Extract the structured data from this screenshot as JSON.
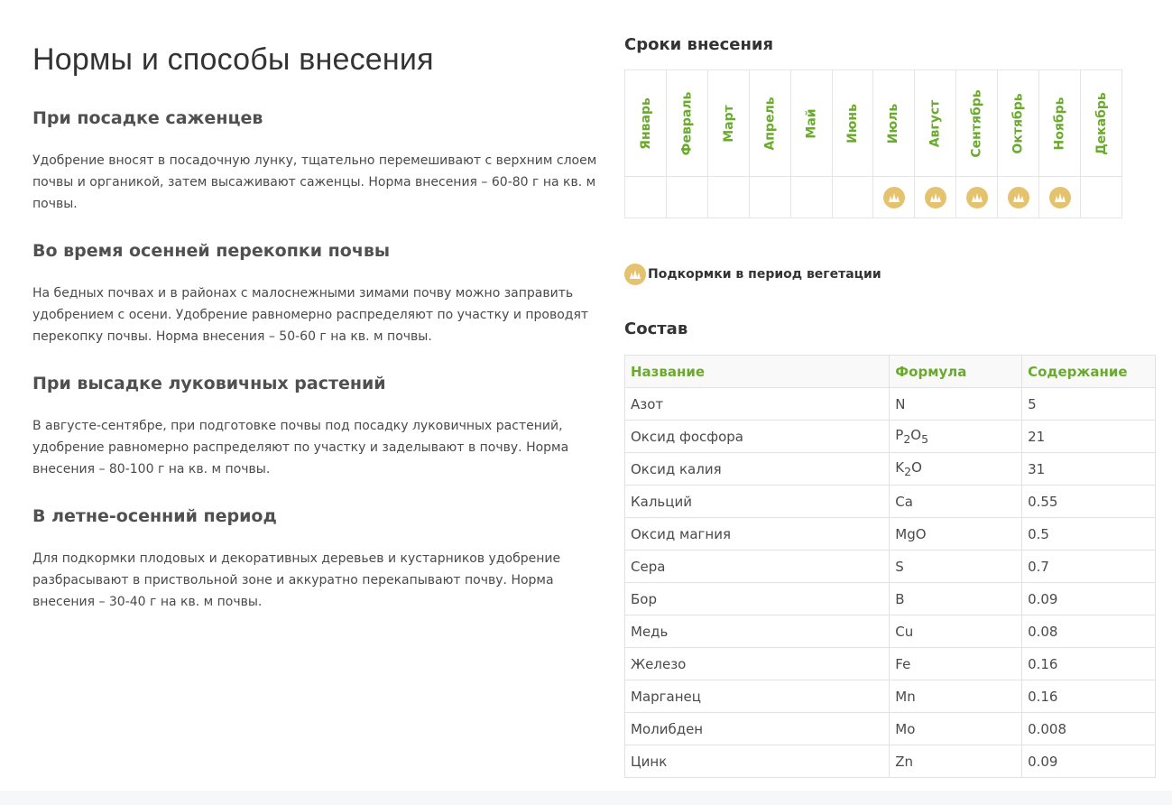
{
  "page_title": "Нормы и способы внесения",
  "sections": [
    {
      "title": "При посадке саженцев",
      "text": "Удобрение вносят в посадочную лунку, тщательно перемешивают с верхним слоем почвы и органикой, затем высаживают саженцы. Норма внесения – 60-80 г на кв. м почвы."
    },
    {
      "title": "Во время осенней перекопки почвы",
      "text": "На бедных почвах и в районах с малоснежными зимами почву можно заправить удобрением с осени. Удобрение равномерно распределяют по участку и проводят перекопку почвы. Норма внесения – 50-60 г на кв. м почвы."
    },
    {
      "title": "При высадке луковичных растений",
      "text": "В августе-сентябре, при подготовке почвы под посадку луковичных растений, удобрение равномерно распределяют по участку и заделывают в почву. Норма внесения – 80-100 г на кв. м почвы."
    },
    {
      "title": "В летне-осенний период",
      "text": "Для подкормки плодовых и декоративных деревьев и кустарников удобрение разбрасывают в приствольной зоне и аккуратно перекапывают почву. Норма внесения – 30-40 г на кв. м почвы."
    }
  ],
  "schedule": {
    "title": "Сроки внесения",
    "months": [
      "Январь",
      "Февраль",
      "Март",
      "Апрель",
      "Май",
      "Июнь",
      "Июль",
      "Август",
      "Сентябрь",
      "Октябрь",
      "Ноябрь",
      "Декабрь"
    ],
    "active": [
      false,
      false,
      false,
      false,
      false,
      false,
      true,
      true,
      true,
      true,
      true,
      false
    ],
    "icon": "grass-icon",
    "legend": "Подкормки в период вегетации",
    "colors": {
      "month_label": "#6aaa2c",
      "badge": "#e5c26e"
    }
  },
  "composition": {
    "title": "Состав",
    "headers": [
      "Название",
      "Формула",
      "Содержание"
    ],
    "rows": [
      {
        "name": "Азот",
        "formula": "N",
        "content": "5"
      },
      {
        "name": "Оксид фосфора",
        "formula": "P<sub>2</sub>O<sub>5</sub>",
        "content": "21"
      },
      {
        "name": "Оксид калия",
        "formula": "K<sub>2</sub>O",
        "content": "31"
      },
      {
        "name": "Кальций",
        "formula": "Ca",
        "content": "0.55"
      },
      {
        "name": "Оксид магния",
        "formula": "MgO",
        "content": "0.5"
      },
      {
        "name": "Сера",
        "formula": "S",
        "content": "0.7"
      },
      {
        "name": "Бор",
        "formula": "B",
        "content": "0.09"
      },
      {
        "name": "Медь",
        "formula": "Cu",
        "content": "0.08"
      },
      {
        "name": "Железо",
        "formula": "Fe",
        "content": "0.16"
      },
      {
        "name": "Марганец",
        "formula": "Mn",
        "content": "0.16"
      },
      {
        "name": "Молибден",
        "formula": "Mo",
        "content": "0.008"
      },
      {
        "name": "Цинк",
        "formula": "Zn",
        "content": "0.09"
      }
    ]
  }
}
